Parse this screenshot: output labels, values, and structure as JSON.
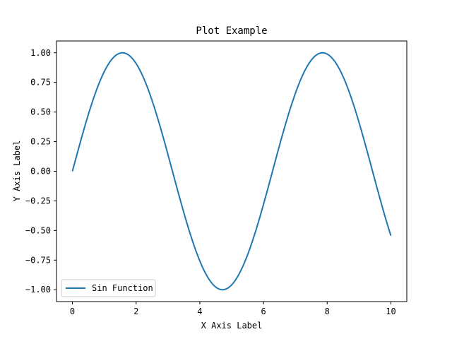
{
  "chart_data": {
    "type": "line",
    "title": "Plot Example",
    "xlabel": "X Axis Label",
    "ylabel": "Y Axis Label",
    "xlim": [
      -0.5,
      10.5
    ],
    "ylim": [
      -1.1,
      1.1
    ],
    "x_ticks": [
      0,
      2,
      4,
      6,
      8,
      10
    ],
    "x_tick_labels": [
      "0",
      "2",
      "4",
      "6",
      "8",
      "10"
    ],
    "y_ticks": [
      1.0,
      0.75,
      0.5,
      0.25,
      0.0,
      -0.25,
      -0.5,
      -0.75,
      -1.0
    ],
    "y_tick_labels": [
      "1.00",
      "0.75",
      "0.50",
      "0.25",
      "0.00",
      "−0.25",
      "−0.50",
      "−0.75",
      "−1.00"
    ],
    "grid": false,
    "legend_position": "lower-left",
    "series": [
      {
        "name": "Sin Function",
        "color": "#1f77b4",
        "function": "sin(x)",
        "x_range": [
          0,
          10
        ],
        "x": [
          0,
          0.5,
          1,
          1.5,
          1.5708,
          2,
          2.5,
          3,
          3.5,
          4,
          4.5,
          4.7124,
          5,
          5.5,
          6,
          6.5,
          7,
          7.5,
          7.854,
          8,
          8.5,
          9,
          9.5,
          10
        ],
        "y": [
          0,
          0.479,
          0.841,
          0.997,
          1.0,
          0.909,
          0.598,
          0.141,
          -0.351,
          -0.757,
          -0.978,
          -1.0,
          -0.959,
          -0.706,
          -0.279,
          0.215,
          0.657,
          0.938,
          1.0,
          0.989,
          0.798,
          0.412,
          -0.075,
          -0.544
        ]
      }
    ]
  }
}
